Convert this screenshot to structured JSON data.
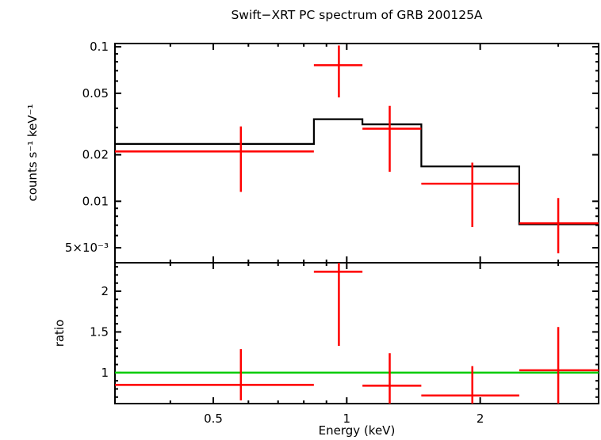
{
  "title": "Swift−XRT PC spectrum of GRB 200125A",
  "chart_data": {
    "type": "line",
    "title": "Swift−XRT PC spectrum of GRB 200125A",
    "xlabel": "Energy (keV)",
    "x_scale": "log",
    "x_range": [
      0.3,
      3.7
    ],
    "x_ticks_major": [
      {
        "v": 0.5,
        "label": "0.5"
      },
      {
        "v": 1,
        "label": "1"
      },
      {
        "v": 2,
        "label": "2"
      }
    ],
    "x_ticks_minor": [
      0.4,
      0.6,
      0.7,
      0.8,
      0.9,
      3
    ],
    "grid": false,
    "legend": "none",
    "colors": {
      "data": "#ff0000",
      "model": "#000000",
      "reference": "#00cc00",
      "axis": "#000000",
      "background": "#ffffff"
    },
    "panels": [
      {
        "name": "spectrum",
        "ylabel": "counts s⁻¹ keV⁻¹",
        "y_scale": "log",
        "y_range": [
          0.004,
          0.105
        ],
        "y_ticks_major": [
          {
            "v": 0.1,
            "label": "0.1"
          },
          {
            "v": 0.05,
            "label": "0.05"
          },
          {
            "v": 0.02,
            "label": "0.02"
          },
          {
            "v": 0.01,
            "label": "0.01"
          },
          {
            "v": 0.005,
            "label": "5×10⁻³"
          }
        ],
        "y_ticks_minor": [
          0.006,
          0.007,
          0.008,
          0.009,
          0.03,
          0.04,
          0.06,
          0.07,
          0.08,
          0.09
        ],
        "model_steps": [
          {
            "x0": 0.3,
            "x1": 0.843,
            "y": 0.0235
          },
          {
            "x0": 0.843,
            "x1": 1.085,
            "y": 0.034
          },
          {
            "x0": 1.085,
            "x1": 1.473,
            "y": 0.0315
          },
          {
            "x0": 1.473,
            "x1": 2.45,
            "y": 0.0168
          },
          {
            "x0": 2.45,
            "x1": 3.7,
            "y": 0.0071
          }
        ],
        "points": [
          {
            "x": 0.577,
            "xlo": 0.3,
            "xhi": 0.843,
            "y": 0.021,
            "ylo": 0.0115,
            "yhi": 0.0305
          },
          {
            "x": 0.96,
            "xlo": 0.843,
            "xhi": 1.085,
            "y": 0.076,
            "ylo": 0.047,
            "yhi": 0.102
          },
          {
            "x": 1.25,
            "xlo": 1.085,
            "xhi": 1.473,
            "y": 0.0295,
            "ylo": 0.0155,
            "yhi": 0.0415
          },
          {
            "x": 1.92,
            "xlo": 1.473,
            "xhi": 2.45,
            "y": 0.013,
            "ylo": 0.0068,
            "yhi": 0.0178
          },
          {
            "x": 3.0,
            "xlo": 2.45,
            "xhi": 3.7,
            "y": 0.0072,
            "ylo": 0.0046,
            "yhi": 0.0105
          }
        ]
      },
      {
        "name": "ratio",
        "ylabel": "ratio",
        "y_scale": "linear",
        "y_range": [
          0.62,
          2.35
        ],
        "y_ticks_major": [
          {
            "v": 1,
            "label": "1"
          },
          {
            "v": 1.5,
            "label": "1.5"
          },
          {
            "v": 2,
            "label": "2"
          }
        ],
        "y_ticks_minor": [
          0.7,
          0.8,
          0.9,
          1.1,
          1.2,
          1.3,
          1.4,
          1.6,
          1.7,
          1.8,
          1.9,
          2.1,
          2.2,
          2.3
        ],
        "reference_line": 1,
        "points": [
          {
            "x": 0.577,
            "xlo": 0.3,
            "xhi": 0.843,
            "y": 0.85,
            "ylo": 0.66,
            "yhi": 1.29
          },
          {
            "x": 0.96,
            "xlo": 0.843,
            "xhi": 1.085,
            "y": 2.24,
            "ylo": 1.33,
            "yhi": 2.42
          },
          {
            "x": 1.25,
            "xlo": 1.085,
            "xhi": 1.473,
            "y": 0.84,
            "ylo": 0.58,
            "yhi": 1.24
          },
          {
            "x": 1.92,
            "xlo": 1.473,
            "xhi": 2.45,
            "y": 0.72,
            "ylo": 0.5,
            "yhi": 1.08
          },
          {
            "x": 3.0,
            "xlo": 2.45,
            "xhi": 3.7,
            "y": 1.03,
            "ylo": 0.5,
            "yhi": 1.56
          }
        ]
      }
    ]
  }
}
